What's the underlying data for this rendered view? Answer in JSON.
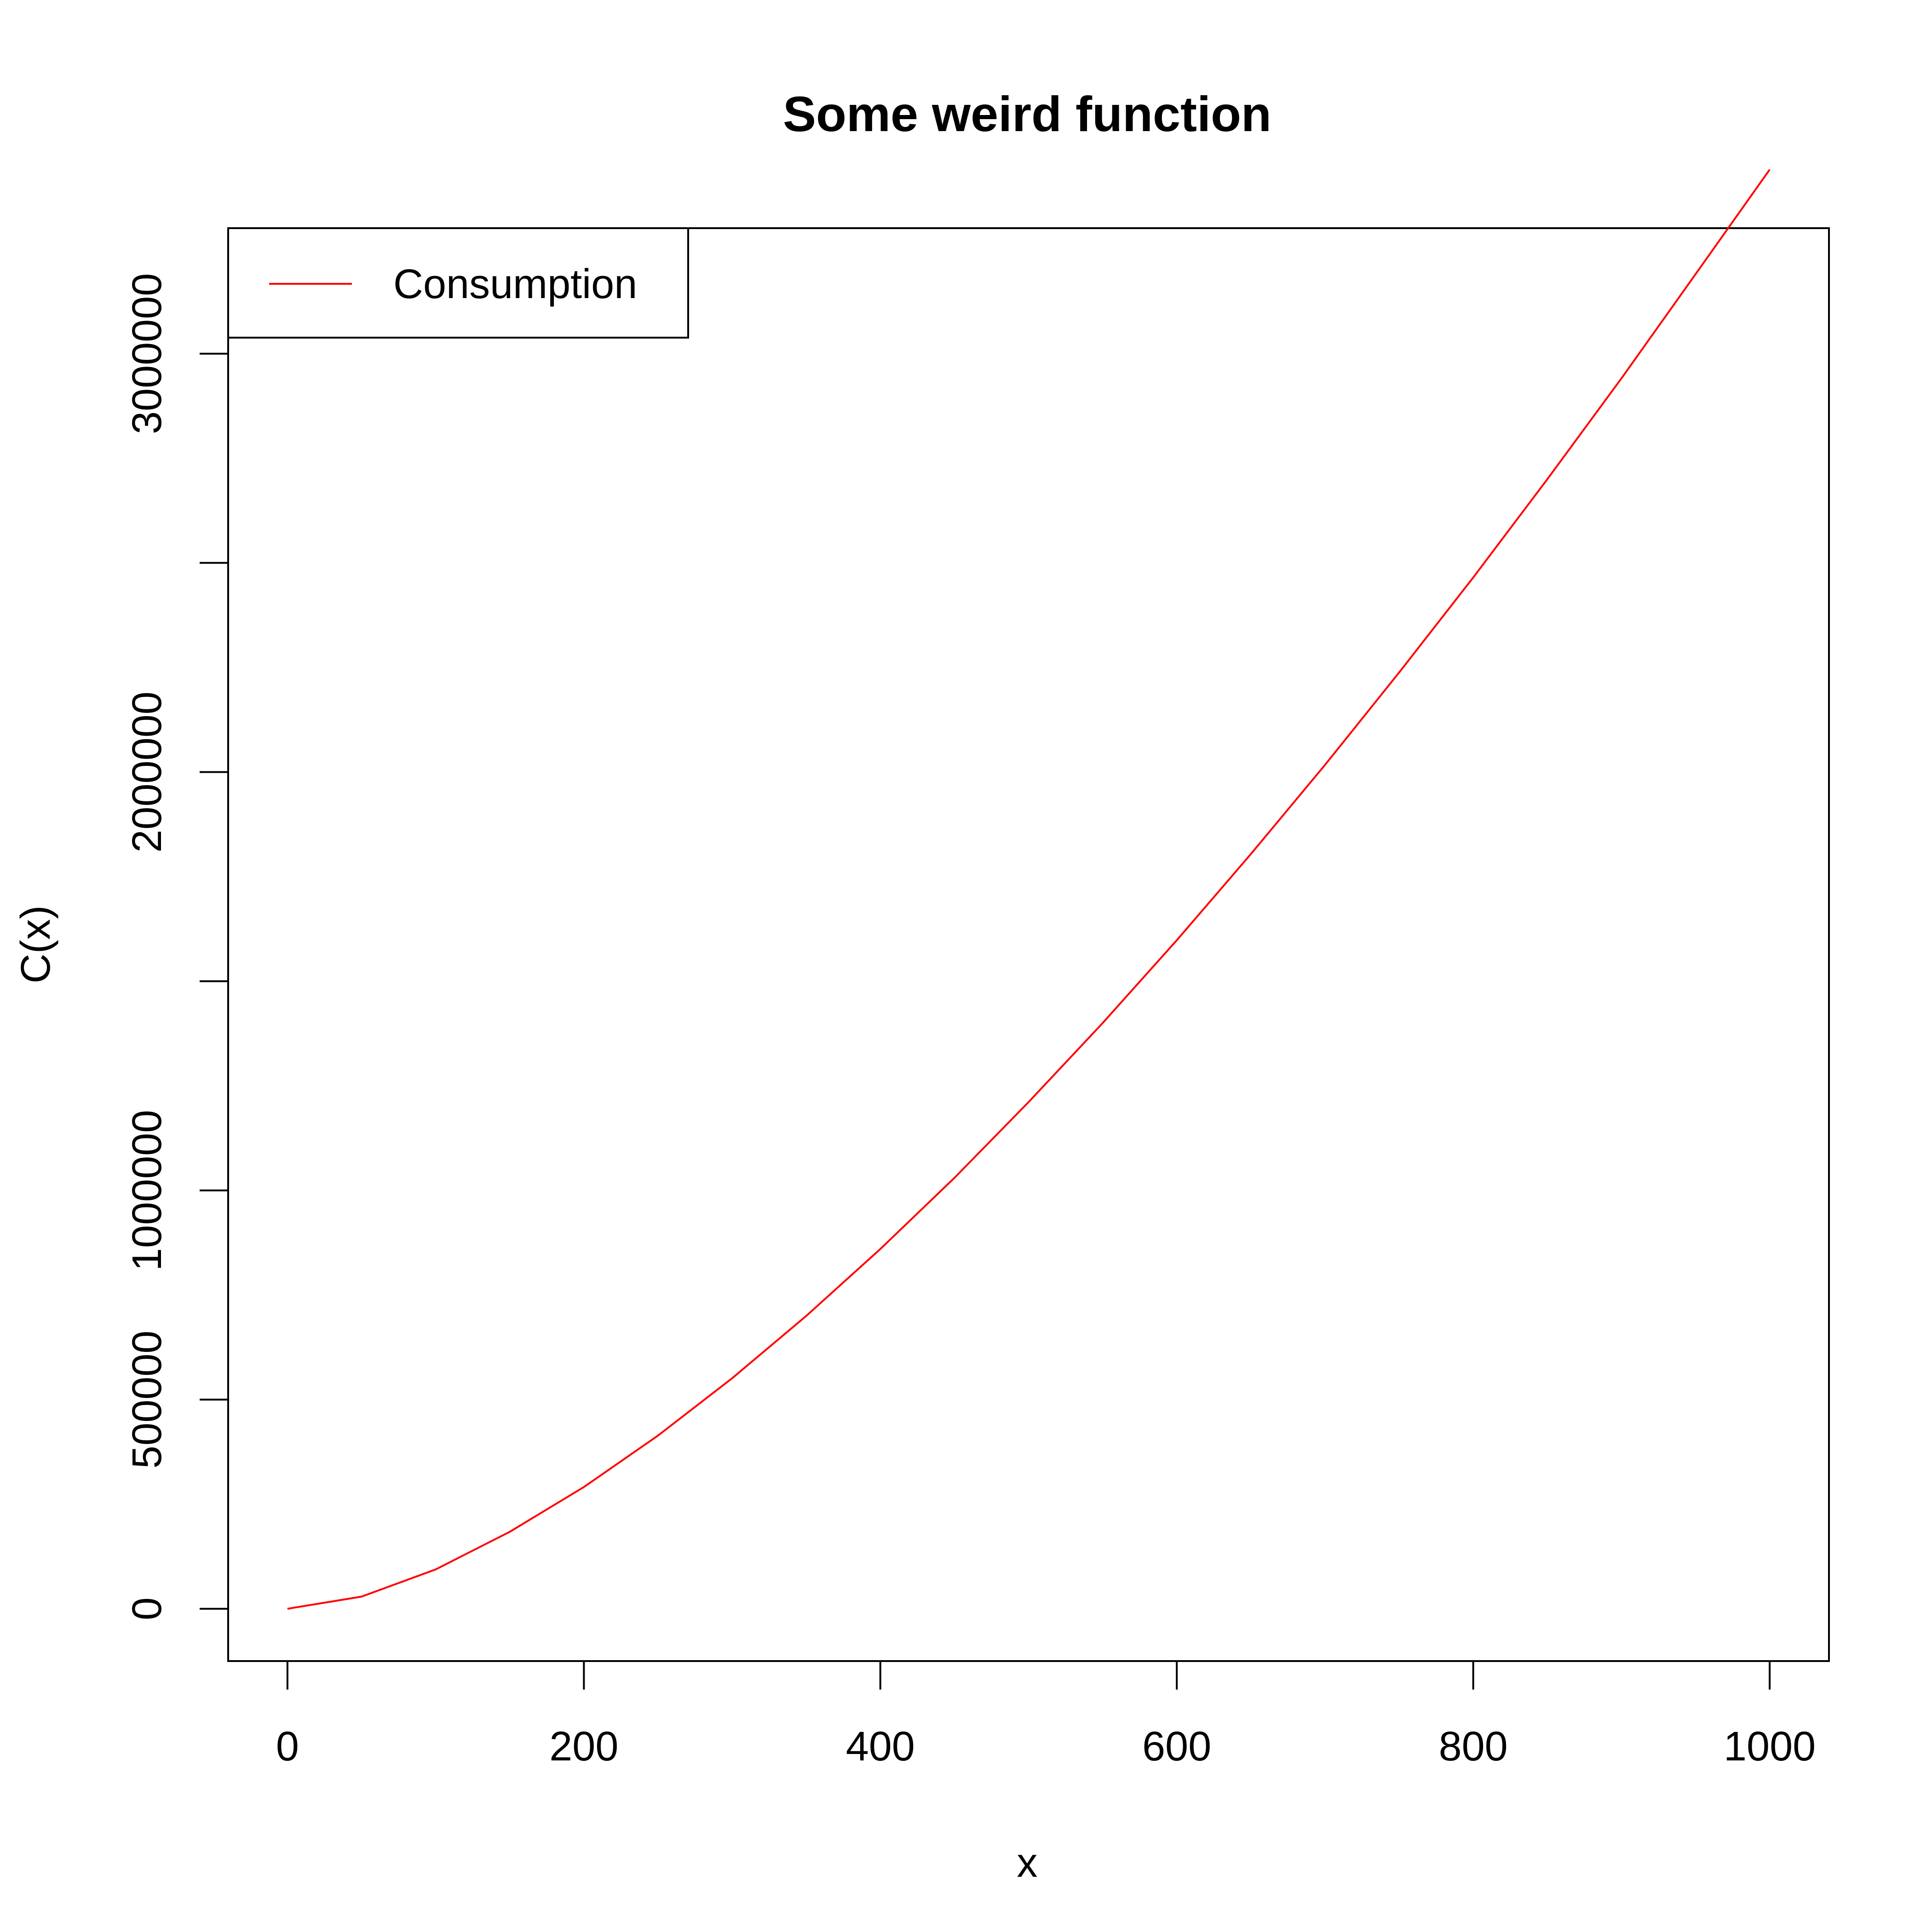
{
  "chart_data": {
    "type": "line",
    "title": "Some weird function",
    "xlabel": "x",
    "ylabel": "C(x)",
    "xlim": [
      -40,
      1040
    ],
    "ylim": [
      -125000,
      3300000
    ],
    "x_ticks": [
      0,
      200,
      400,
      600,
      800,
      1000
    ],
    "x_tick_labels": [
      "0",
      "200",
      "400",
      "600",
      "800",
      "1000"
    ],
    "y_ticks": [
      0,
      500000,
      1000000,
      1500000,
      2000000,
      2500000,
      3000000
    ],
    "y_tick_labels": [
      "0",
      "500000",
      "1000000",
      "",
      "2000000",
      "",
      "3000000"
    ],
    "grid": false,
    "legend_position": "top-left",
    "series": [
      {
        "name": "Consumption",
        "color": "#ff0000",
        "x": [
          0,
          50,
          100,
          150,
          200,
          250,
          300,
          350,
          400,
          450,
          500,
          550,
          600,
          650,
          700,
          750,
          800,
          850,
          900,
          950,
          1000
        ],
        "values": [
          0,
          29000,
          94000,
          184000,
          291000,
          414000,
          551000,
          700000,
          860000,
          1030000,
          1211000,
          1400000,
          1598000,
          1804000,
          2017000,
          2238000,
          2465000,
          2700000,
          2941000,
          3190000,
          3440000
        ]
      }
    ]
  }
}
